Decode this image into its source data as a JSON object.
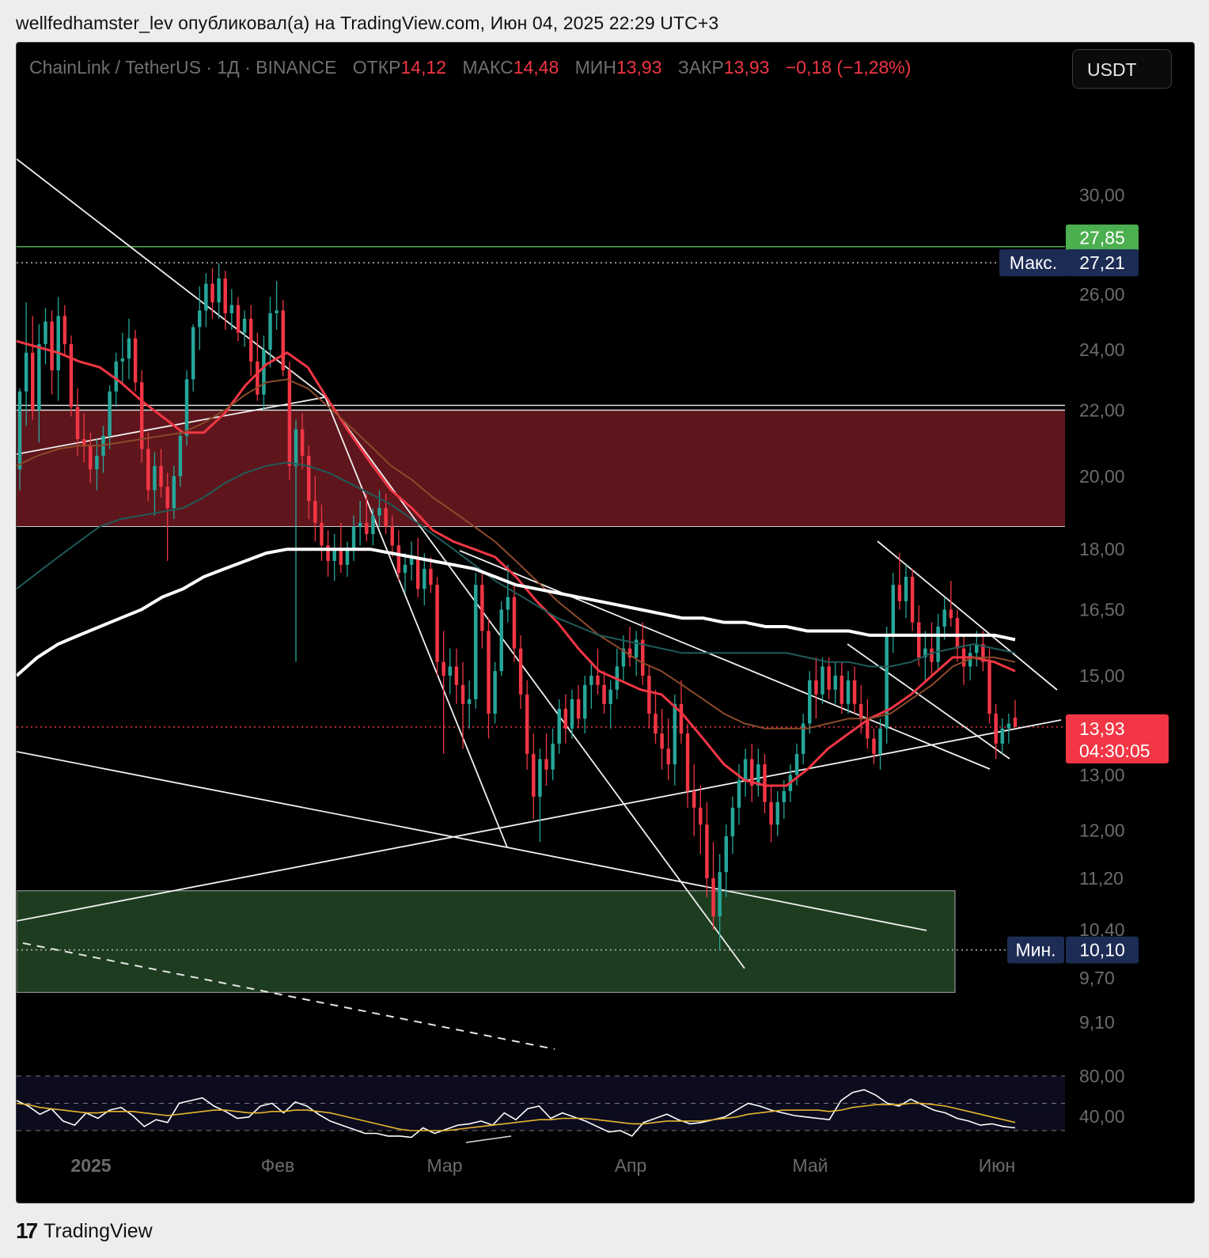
{
  "header": {
    "published_line": "wellfedhamster_lev опубликовал(а) на TradingView.com, Июн 04, 2025 22:29 UTC+3"
  },
  "legend": {
    "symbol": "ChainLink / TetherUS · 1Д · BINANCE",
    "open_label": "ОТКР",
    "open": "14,12",
    "high_label": "МАКС",
    "high": "14,48",
    "low_label": "МИН",
    "low": "13,93",
    "close_label": "ЗАКР",
    "close": "13,93",
    "change": "−0,18 (−1,28%)"
  },
  "currency_button": "USDT",
  "footer": {
    "brand": "TradingView",
    "logo": "17"
  },
  "colors": {
    "up": "#26a69a",
    "down": "#f23645",
    "zone_red": "#5e161c",
    "zone_green": "#1e3d20",
    "rsi": "#ffffff",
    "rsi_ma": "#e6b530"
  },
  "chart_data": {
    "type": "candlestick",
    "pair": "LINK/USDT",
    "timeframe": "1D",
    "y_scale": "log",
    "y_ticks": [
      {
        "value": 30,
        "label": "30,00"
      },
      {
        "value": 26,
        "label": "26,00"
      },
      {
        "value": 24,
        "label": "24,00"
      },
      {
        "value": 22,
        "label": "22,00"
      },
      {
        "value": 20,
        "label": "20,00"
      },
      {
        "value": 18,
        "label": "18,00"
      },
      {
        "value": 16.5,
        "label": "16,50"
      },
      {
        "value": 15,
        "label": "15,00"
      },
      {
        "value": 13,
        "label": "13,00"
      },
      {
        "value": 12,
        "label": "12,00"
      },
      {
        "value": 11.2,
        "label": "11,20"
      },
      {
        "value": 10.4,
        "label": "10,40"
      },
      {
        "value": 9.7,
        "label": "9,70"
      },
      {
        "value": 9.1,
        "label": "9,10"
      }
    ],
    "x_ticks": [
      "2025",
      "Фев",
      "Мар",
      "Апр",
      "Май",
      "Июн"
    ],
    "price_badges": {
      "level_line": {
        "label": "27,85",
        "value": 27.85
      },
      "max": {
        "name": "Макс.",
        "label": "27,21",
        "value": 27.21
      },
      "min": {
        "name": "Мин.",
        "label": "10,10",
        "value": 10.1
      },
      "last": {
        "label": "13,93",
        "countdown": "04:30:05",
        "value": 13.93
      }
    },
    "zones": [
      {
        "kind": "supply",
        "from": 18.6,
        "to": 22.0
      },
      {
        "kind": "demand",
        "from": 9.5,
        "to": 11.0
      }
    ],
    "candles": [
      [
        20.2,
        22.7,
        19.6,
        22.6
      ],
      [
        22.6,
        25.7,
        21.5,
        23.9
      ],
      [
        23.9,
        25.2,
        21.7,
        22.0
      ],
      [
        22.0,
        24.9,
        21.0,
        24.2
      ],
      [
        24.2,
        25.5,
        23.5,
        25.0
      ],
      [
        25.0,
        25.4,
        22.5,
        23.3
      ],
      [
        23.3,
        25.9,
        22.3,
        25.2
      ],
      [
        25.2,
        25.6,
        23.8,
        24.2
      ],
      [
        24.2,
        24.5,
        21.8,
        22.1
      ],
      [
        22.1,
        22.7,
        20.6,
        21.1
      ],
      [
        21.1,
        21.9,
        20.4,
        20.9
      ],
      [
        20.9,
        21.3,
        19.8,
        20.2
      ],
      [
        20.2,
        21.1,
        19.6,
        20.6
      ],
      [
        20.6,
        21.5,
        20.1,
        21.2
      ],
      [
        21.2,
        22.8,
        20.8,
        22.6
      ],
      [
        22.6,
        23.9,
        22.1,
        23.6
      ],
      [
        23.6,
        24.6,
        22.9,
        23.7
      ],
      [
        23.7,
        25.1,
        23.0,
        24.4
      ],
      [
        24.4,
        24.7,
        22.6,
        22.9
      ],
      [
        22.9,
        23.3,
        20.4,
        20.8
      ],
      [
        20.8,
        21.3,
        19.3,
        19.6
      ],
      [
        19.6,
        20.7,
        18.9,
        20.3
      ],
      [
        20.3,
        20.8,
        19.4,
        19.7
      ],
      [
        19.7,
        20.1,
        17.7,
        19.1
      ],
      [
        19.1,
        20.3,
        18.8,
        20.0
      ],
      [
        20.0,
        21.4,
        19.7,
        21.2
      ],
      [
        21.2,
        23.3,
        20.9,
        23.0
      ],
      [
        23.0,
        24.9,
        22.6,
        24.8
      ],
      [
        24.8,
        26.3,
        24.0,
        25.4
      ],
      [
        25.4,
        26.8,
        24.8,
        26.4
      ],
      [
        26.4,
        27.0,
        25.1,
        25.7
      ],
      [
        25.7,
        27.2,
        25.1,
        26.6
      ],
      [
        26.6,
        26.9,
        24.7,
        25.3
      ],
      [
        25.3,
        26.2,
        24.7,
        25.6
      ],
      [
        25.6,
        25.9,
        24.3,
        24.6
      ],
      [
        24.6,
        25.4,
        24.1,
        25.1
      ],
      [
        25.1,
        25.6,
        23.1,
        23.6
      ],
      [
        23.6,
        24.6,
        22.3,
        22.5
      ],
      [
        22.5,
        24.5,
        22.0,
        24.0
      ],
      [
        24.0,
        25.9,
        23.4,
        25.3
      ],
      [
        25.3,
        26.5,
        24.7,
        25.4
      ],
      [
        25.4,
        25.8,
        23.1,
        23.3
      ],
      [
        23.3,
        23.6,
        19.9,
        20.3
      ],
      [
        20.3,
        21.7,
        15.3,
        21.4
      ],
      [
        21.4,
        21.9,
        20.2,
        20.6
      ],
      [
        20.6,
        20.9,
        18.8,
        19.3
      ],
      [
        19.3,
        20.0,
        18.2,
        18.7
      ],
      [
        18.7,
        19.2,
        17.7,
        18.1
      ],
      [
        18.1,
        18.5,
        17.3,
        17.7
      ],
      [
        17.7,
        18.4,
        17.2,
        18.0
      ],
      [
        18.0,
        18.7,
        17.4,
        17.6
      ],
      [
        17.6,
        18.2,
        17.3,
        18.0
      ],
      [
        18.0,
        18.9,
        17.7,
        18.6
      ],
      [
        18.6,
        19.3,
        18.1,
        18.7
      ],
      [
        18.7,
        19.5,
        18.2,
        18.4
      ],
      [
        18.4,
        19.1,
        18.1,
        18.9
      ],
      [
        18.9,
        19.6,
        18.6,
        19.1
      ],
      [
        19.1,
        19.5,
        18.4,
        18.6
      ],
      [
        18.6,
        18.9,
        17.8,
        18.1
      ],
      [
        18.1,
        18.5,
        17.2,
        17.4
      ],
      [
        17.4,
        17.9,
        16.9,
        17.6
      ],
      [
        17.6,
        18.2,
        17.2,
        17.8
      ],
      [
        17.8,
        18.3,
        16.8,
        17.0
      ],
      [
        17.0,
        17.9,
        16.6,
        17.5
      ],
      [
        17.5,
        17.8,
        16.9,
        17.1
      ],
      [
        17.1,
        17.3,
        15.0,
        15.3
      ],
      [
        15.3,
        16.0,
        13.4,
        15.0
      ],
      [
        15.0,
        15.6,
        14.6,
        15.2
      ],
      [
        15.2,
        15.6,
        14.4,
        14.8
      ],
      [
        14.8,
        15.3,
        13.5,
        14.4
      ],
      [
        14.4,
        14.9,
        13.9,
        14.5
      ],
      [
        14.5,
        17.4,
        14.3,
        17.1
      ],
      [
        17.1,
        17.4,
        15.6,
        16.0
      ],
      [
        16.0,
        16.3,
        13.7,
        14.2
      ],
      [
        14.2,
        15.3,
        14.0,
        15.1
      ],
      [
        15.1,
        16.7,
        15.0,
        16.5
      ],
      [
        16.5,
        17.6,
        16.2,
        16.8
      ],
      [
        16.8,
        17.1,
        15.3,
        15.6
      ],
      [
        15.6,
        15.9,
        14.3,
        14.6
      ],
      [
        14.6,
        14.9,
        13.1,
        13.4
      ],
      [
        13.4,
        13.8,
        12.2,
        12.6
      ],
      [
        12.6,
        13.5,
        11.8,
        13.3
      ],
      [
        13.3,
        13.8,
        12.8,
        13.1
      ],
      [
        13.1,
        13.9,
        12.9,
        13.6
      ],
      [
        13.6,
        14.5,
        13.4,
        14.3
      ],
      [
        14.3,
        14.6,
        13.6,
        13.9
      ],
      [
        13.9,
        14.7,
        13.7,
        14.5
      ],
      [
        14.5,
        14.8,
        13.9,
        14.1
      ],
      [
        14.1,
        15.0,
        13.8,
        14.8
      ],
      [
        14.8,
        15.3,
        14.3,
        15.0
      ],
      [
        15.0,
        15.6,
        14.6,
        14.8
      ],
      [
        14.8,
        15.1,
        14.2,
        14.4
      ],
      [
        14.4,
        14.9,
        13.9,
        14.7
      ],
      [
        14.7,
        15.6,
        14.5,
        15.2
      ],
      [
        15.2,
        15.9,
        14.9,
        15.6
      ],
      [
        15.6,
        16.1,
        15.2,
        15.4
      ],
      [
        15.4,
        16.0,
        15.0,
        15.8
      ],
      [
        15.8,
        16.2,
        14.8,
        15.0
      ],
      [
        15.0,
        15.2,
        13.9,
        14.2
      ],
      [
        14.2,
        14.7,
        13.6,
        13.8
      ],
      [
        13.8,
        14.3,
        13.1,
        13.5
      ],
      [
        13.5,
        14.1,
        12.9,
        13.2
      ],
      [
        13.2,
        14.6,
        12.8,
        14.4
      ],
      [
        14.4,
        14.9,
        13.6,
        13.8
      ],
      [
        13.8,
        14.0,
        12.4,
        12.7
      ],
      [
        12.7,
        13.2,
        11.9,
        12.4
      ],
      [
        12.4,
        12.8,
        11.6,
        12.1
      ],
      [
        12.1,
        12.5,
        10.9,
        11.2
      ],
      [
        11.2,
        11.8,
        10.4,
        10.6
      ],
      [
        10.6,
        11.6,
        10.1,
        11.3
      ],
      [
        11.3,
        12.1,
        10.9,
        11.9
      ],
      [
        11.9,
        12.6,
        11.6,
        12.4
      ],
      [
        12.4,
        13.2,
        12.1,
        12.9
      ],
      [
        12.9,
        13.5,
        12.6,
        13.3
      ],
      [
        13.3,
        13.6,
        12.5,
        12.8
      ],
      [
        12.8,
        13.5,
        12.6,
        13.2
      ],
      [
        13.2,
        13.4,
        12.3,
        12.5
      ],
      [
        12.5,
        12.8,
        11.8,
        12.1
      ],
      [
        12.1,
        12.7,
        11.9,
        12.5
      ],
      [
        12.5,
        12.9,
        12.2,
        12.7
      ],
      [
        12.7,
        13.2,
        12.5,
        13.0
      ],
      [
        13.0,
        13.6,
        12.8,
        13.4
      ],
      [
        13.4,
        14.2,
        13.2,
        14.0
      ],
      [
        14.0,
        15.1,
        13.8,
        14.9
      ],
      [
        14.9,
        15.4,
        14.1,
        14.6
      ],
      [
        14.6,
        15.4,
        14.4,
        15.2
      ],
      [
        15.2,
        15.4,
        14.5,
        14.7
      ],
      [
        14.7,
        15.3,
        14.4,
        15.0
      ],
      [
        15.0,
        15.3,
        14.2,
        14.4
      ],
      [
        14.4,
        15.1,
        14.2,
        14.9
      ],
      [
        14.9,
        15.2,
        14.2,
        14.4
      ],
      [
        14.4,
        14.8,
        13.8,
        14.1
      ],
      [
        14.1,
        14.5,
        13.5,
        13.7
      ],
      [
        13.7,
        13.9,
        13.2,
        13.4
      ],
      [
        13.4,
        14.1,
        13.1,
        13.9
      ],
      [
        13.9,
        16.1,
        13.6,
        15.9
      ],
      [
        15.9,
        17.4,
        15.5,
        17.1
      ],
      [
        17.1,
        17.9,
        16.5,
        16.7
      ],
      [
        16.7,
        17.6,
        16.3,
        17.3
      ],
      [
        17.3,
        17.5,
        16.0,
        16.2
      ],
      [
        16.2,
        16.6,
        15.2,
        15.4
      ],
      [
        15.4,
        16.0,
        14.9,
        15.6
      ],
      [
        15.6,
        16.2,
        15.0,
        15.3
      ],
      [
        15.3,
        16.4,
        15.1,
        16.1
      ],
      [
        16.1,
        16.8,
        15.8,
        16.5
      ],
      [
        16.5,
        17.2,
        16.1,
        16.3
      ],
      [
        16.3,
        16.5,
        15.3,
        15.6
      ],
      [
        15.6,
        15.9,
        14.8,
        15.2
      ],
      [
        15.2,
        15.7,
        14.9,
        15.5
      ],
      [
        15.5,
        16.0,
        15.2,
        15.7
      ],
      [
        15.7,
        16.0,
        15.1,
        15.3
      ],
      [
        15.3,
        15.6,
        14.0,
        14.2
      ],
      [
        14.2,
        14.4,
        13.3,
        13.6
      ],
      [
        13.6,
        14.1,
        13.4,
        13.9
      ],
      [
        13.9,
        14.2,
        13.6,
        14.0
      ],
      [
        14.12,
        14.48,
        13.93,
        13.93
      ]
    ],
    "moving_averages": [
      {
        "color": "#f23645",
        "values": [
          24.3,
          24.1,
          23.9,
          23.6,
          23.4,
          22.9,
          22.3,
          21.8,
          21.3,
          21.3,
          21.9,
          22.8,
          23.5,
          23.9,
          23.4,
          22.3,
          21.3,
          20.4,
          19.6,
          19.1,
          18.5,
          18.2,
          18.0,
          17.8,
          17.3,
          16.7,
          16.2,
          15.6,
          15.1,
          14.9,
          14.7,
          14.6,
          14.2,
          13.7,
          13.2,
          12.9,
          12.8,
          12.8,
          13.1,
          13.5,
          13.8,
          14.1,
          14.3,
          14.6,
          15.0,
          15.4,
          15.4,
          15.3,
          15.1
        ]
      },
      {
        "color": "#8b4a2a",
        "values": [
          20.3,
          20.6,
          20.8,
          20.9,
          20.9,
          21.0,
          21.1,
          21.2,
          21.3,
          21.6,
          22.0,
          22.5,
          22.9,
          23.0,
          22.7,
          22.1,
          21.5,
          20.9,
          20.3,
          19.9,
          19.4,
          19.0,
          18.6,
          18.2,
          17.7,
          17.2,
          16.7,
          16.3,
          15.9,
          15.6,
          15.3,
          15.1,
          14.8,
          14.5,
          14.2,
          14.0,
          13.9,
          13.9,
          13.9,
          14.0,
          14.1,
          14.1,
          14.2,
          14.5,
          14.8,
          15.2,
          15.4,
          15.4,
          15.3
        ]
      },
      {
        "color": "#1f5c5a",
        "values": [
          17.0,
          17.4,
          17.8,
          18.2,
          18.6,
          18.8,
          18.9,
          19.0,
          19.1,
          19.4,
          19.8,
          20.1,
          20.3,
          20.4,
          20.3,
          20.1,
          19.8,
          19.5,
          19.2,
          18.8,
          18.4,
          18.0,
          17.6,
          17.2,
          16.9,
          16.6,
          16.3,
          16.1,
          15.9,
          15.8,
          15.7,
          15.6,
          15.5,
          15.5,
          15.5,
          15.5,
          15.5,
          15.5,
          15.4,
          15.3,
          15.3,
          15.2,
          15.2,
          15.3,
          15.5,
          15.6,
          15.7,
          15.6,
          15.5
        ]
      },
      {
        "color": "#ffffff",
        "values": [
          15.0,
          15.4,
          15.7,
          15.9,
          16.1,
          16.3,
          16.5,
          16.8,
          17.0,
          17.3,
          17.5,
          17.7,
          17.9,
          18.0,
          18.0,
          18.0,
          18.0,
          18.0,
          17.9,
          17.8,
          17.7,
          17.6,
          17.5,
          17.3,
          17.1,
          17.0,
          16.9,
          16.8,
          16.7,
          16.6,
          16.5,
          16.4,
          16.3,
          16.3,
          16.2,
          16.2,
          16.1,
          16.1,
          16.0,
          16.0,
          16.0,
          15.9,
          15.9,
          15.9,
          15.9,
          15.9,
          15.9,
          15.9,
          15.8
        ]
      }
    ],
    "rsi": {
      "upper": 80,
      "lower": 40,
      "tick_labels": [
        "80,00",
        "40,00"
      ],
      "values": [
        62,
        58,
        52,
        56,
        47,
        44,
        53,
        49,
        55,
        57,
        51,
        43,
        48,
        46,
        60,
        62,
        64,
        58,
        54,
        49,
        50,
        58,
        60,
        53,
        61,
        58,
        52,
        47,
        44,
        41,
        38,
        38,
        36,
        36,
        35,
        42,
        38,
        41,
        44,
        45,
        47,
        44,
        53,
        48,
        56,
        58,
        49,
        53,
        50,
        47,
        43,
        39,
        40,
        36,
        46,
        49,
        52,
        48,
        45,
        46,
        48,
        50,
        55,
        60,
        58,
        55,
        53,
        51,
        50,
        49,
        48,
        62,
        68,
        70,
        66,
        60,
        58,
        63,
        59,
        55,
        53,
        49,
        47,
        44,
        45,
        43,
        42
      ],
      "ma_values": [
        60,
        59,
        57,
        56,
        55,
        54,
        53,
        53,
        54,
        54,
        54,
        53,
        52,
        51,
        52,
        53,
        54,
        55,
        55,
        54,
        53,
        53,
        54,
        54,
        55,
        55,
        54,
        53,
        51,
        49,
        47,
        45,
        43,
        41,
        40,
        40,
        40,
        40,
        41,
        42,
        43,
        44,
        45,
        46,
        47,
        48,
        48,
        49,
        49,
        49,
        48,
        47,
        46,
        45,
        45,
        46,
        47,
        47,
        47,
        47,
        48,
        49,
        50,
        52,
        53,
        54,
        55,
        55,
        55,
        55,
        54,
        55,
        57,
        58,
        59,
        59,
        59,
        60,
        60,
        59,
        58,
        56,
        54,
        52,
        50,
        48,
        46
      ]
    }
  }
}
